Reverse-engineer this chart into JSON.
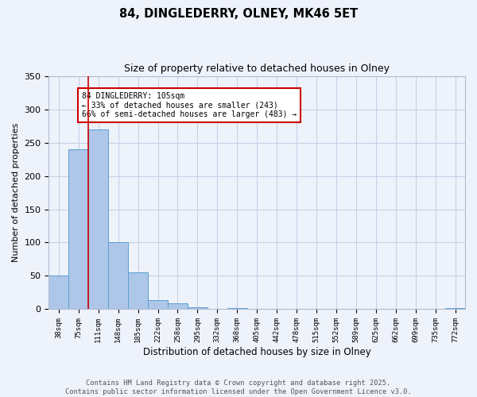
{
  "title1": "84, DINGLEDERRY, OLNEY, MK46 5ET",
  "title2": "Size of property relative to detached houses in Olney",
  "xlabel": "Distribution of detached houses by size in Olney",
  "ylabel": "Number of detached properties",
  "bar_values": [
    50,
    240,
    270,
    100,
    55,
    14,
    9,
    3,
    0,
    2,
    0,
    0,
    0,
    0,
    0,
    0,
    0,
    0,
    0,
    0,
    2
  ],
  "bin_labels": [
    "38sqm",
    "75sqm",
    "111sqm",
    "148sqm",
    "185sqm",
    "222sqm",
    "258sqm",
    "295sqm",
    "332sqm",
    "368sqm",
    "405sqm",
    "442sqm",
    "478sqm",
    "515sqm",
    "552sqm",
    "589sqm",
    "625sqm",
    "662sqm",
    "699sqm",
    "735sqm",
    "772sqm"
  ],
  "bar_color": "#aec6e8",
  "bar_edge_color": "#5a9fd4",
  "bg_color": "#eef2fb",
  "grid_color": "#c8d0e8",
  "vline_x": 2.0,
  "vline_color": "#cc0000",
  "annotation_title": "84 DINGLEDERRY: 105sqm",
  "annotation_line1": "← 33% of detached houses are smaller (243)",
  "annotation_line2": "66% of semi-detached houses are larger (483) →",
  "annotation_box_color": "#ffffff",
  "annotation_border_color": "#cc0000",
  "ylim": [
    0,
    350
  ],
  "yticks": [
    0,
    50,
    100,
    150,
    200,
    250,
    300,
    350
  ],
  "footer1": "Contains HM Land Registry data © Crown copyright and database right 2025.",
  "footer2": "Contains public sector information licensed under the Open Government Licence v3.0."
}
